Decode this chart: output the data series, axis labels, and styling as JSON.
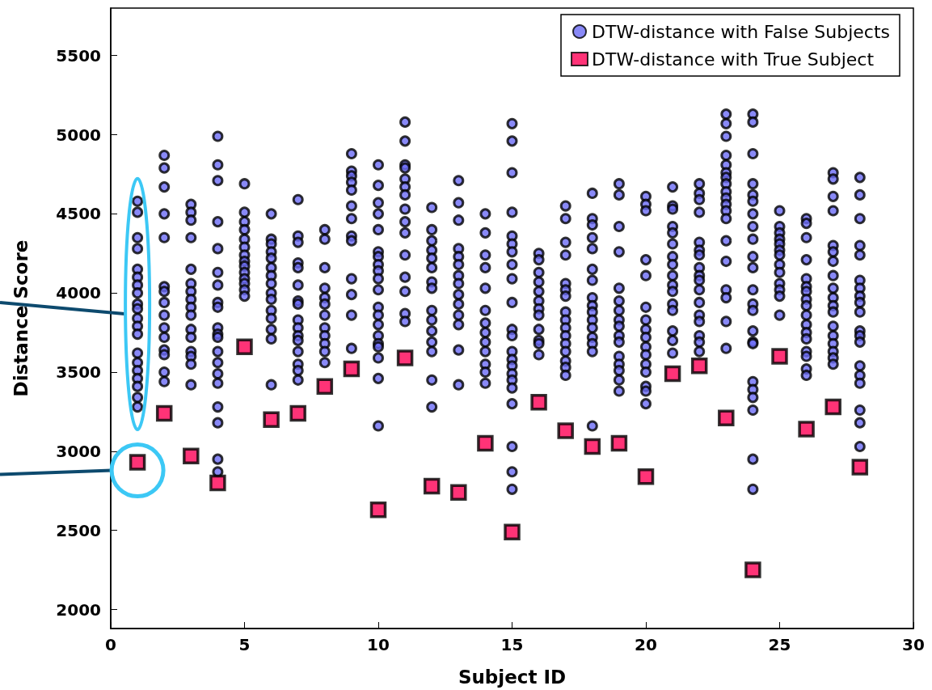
{
  "chart_data": {
    "type": "scatter",
    "xlabel": "Subject ID",
    "ylabel": "Distance Score",
    "xlim": [
      0,
      30
    ],
    "xticks": [
      0,
      5,
      10,
      15,
      20,
      25,
      30
    ],
    "ylim": [
      1880,
      5800
    ],
    "yticks": [
      2000,
      2500,
      3000,
      3500,
      4000,
      4500,
      5000,
      5500
    ],
    "grid": false,
    "legend": "top right",
    "series": [
      {
        "name": "DTW-distance with False Subjects",
        "color": "#6b6bf5",
        "marker": "circle",
        "x": [
          1,
          1,
          1,
          1,
          1,
          1,
          1,
          1,
          1,
          1,
          1,
          1,
          1,
          1,
          1,
          1,
          1,
          1,
          1,
          1,
          2,
          2,
          2,
          2,
          2,
          2,
          2,
          2,
          2,
          2,
          2,
          2,
          2,
          2,
          2,
          3,
          3,
          3,
          3,
          3,
          3,
          3,
          3,
          3,
          3,
          3,
          3,
          3,
          3,
          3,
          3,
          4,
          4,
          4,
          4,
          4,
          4,
          4,
          4,
          4,
          4,
          4,
          4,
          4,
          4,
          4,
          4,
          4,
          4,
          4,
          4,
          5,
          5,
          5,
          5,
          5,
          5,
          5,
          5,
          5,
          5,
          5,
          5,
          5,
          5,
          6,
          6,
          6,
          6,
          6,
          6,
          6,
          6,
          6,
          6,
          6,
          6,
          6,
          6,
          6,
          7,
          7,
          7,
          7,
          7,
          7,
          7,
          7,
          7,
          7,
          7,
          7,
          7,
          7,
          7,
          7,
          8,
          8,
          8,
          8,
          8,
          8,
          8,
          8,
          8,
          8,
          8,
          8,
          9,
          9,
          9,
          9,
          9,
          9,
          9,
          9,
          9,
          9,
          9,
          9,
          9,
          10,
          10,
          10,
          10,
          10,
          10,
          10,
          10,
          10,
          10,
          10,
          10,
          10,
          10,
          10,
          10,
          10,
          10,
          10,
          10,
          11,
          11,
          11,
          11,
          11,
          11,
          11,
          11,
          11,
          11,
          11,
          11,
          11,
          11,
          11,
          12,
          12,
          12,
          12,
          12,
          12,
          12,
          12,
          12,
          12,
          12,
          12,
          12,
          12,
          12,
          13,
          13,
          13,
          13,
          13,
          13,
          13,
          13,
          13,
          13,
          13,
          13,
          13,
          13,
          14,
          14,
          14,
          14,
          14,
          14,
          14,
          14,
          14,
          14,
          14,
          14,
          14,
          15,
          15,
          15,
          15,
          15,
          15,
          15,
          15,
          15,
          15,
          15,
          15,
          15,
          15,
          15,
          15,
          15,
          15,
          15,
          15,
          15,
          15,
          16,
          16,
          16,
          16,
          16,
          16,
          16,
          16,
          16,
          16,
          16,
          16,
          17,
          17,
          17,
          17,
          17,
          17,
          17,
          17,
          17,
          17,
          17,
          17,
          17,
          17,
          17,
          17,
          18,
          18,
          18,
          18,
          18,
          18,
          18,
          18,
          18,
          18,
          18,
          18,
          18,
          18,
          18,
          18,
          19,
          19,
          19,
          19,
          19,
          19,
          19,
          19,
          19,
          19,
          19,
          19,
          19,
          19,
          19,
          19,
          20,
          20,
          20,
          20,
          20,
          20,
          20,
          20,
          20,
          20,
          20,
          20,
          20,
          20,
          20,
          20,
          21,
          21,
          21,
          21,
          21,
          21,
          21,
          21,
          21,
          21,
          21,
          21,
          21,
          21,
          21,
          21,
          22,
          22,
          22,
          22,
          22,
          22,
          22,
          22,
          22,
          22,
          22,
          22,
          22,
          22,
          22,
          22,
          22,
          23,
          23,
          23,
          23,
          23,
          23,
          23,
          23,
          23,
          23,
          23,
          23,
          23,
          23,
          23,
          23,
          23,
          23,
          23,
          24,
          24,
          24,
          24,
          24,
          24,
          24,
          24,
          24,
          24,
          24,
          24,
          24,
          24,
          24,
          24,
          24,
          24,
          24,
          24,
          24,
          24,
          24,
          25,
          25,
          25,
          25,
          25,
          25,
          25,
          25,
          25,
          25,
          25,
          25,
          25,
          26,
          26,
          26,
          26,
          26,
          26,
          26,
          26,
          26,
          26,
          26,
          26,
          26,
          26,
          26,
          26,
          26,
          27,
          27,
          27,
          27,
          27,
          27,
          27,
          27,
          27,
          27,
          27,
          27,
          27,
          27,
          27,
          27,
          27,
          27,
          28,
          28,
          28,
          28,
          28,
          28,
          28,
          28,
          28,
          28,
          28,
          28,
          28,
          28,
          28,
          28,
          28,
          28,
          28
        ],
        "values": [
          4580,
          4510,
          4350,
          4280,
          4150,
          4100,
          4050,
          4000,
          3930,
          3900,
          3840,
          3790,
          3740,
          3620,
          3560,
          3510,
          3460,
          3410,
          3340,
          3280,
          4870,
          4790,
          4670,
          4500,
          4350,
          4040,
          4010,
          3940,
          3860,
          3780,
          3720,
          3640,
          3610,
          3500,
          3440,
          4560,
          4510,
          4460,
          4350,
          4150,
          4060,
          4010,
          3960,
          3910,
          3860,
          3770,
          3720,
          3630,
          3600,
          3550,
          3420,
          4990,
          4810,
          4710,
          4450,
          4280,
          4130,
          4050,
          3940,
          3910,
          3780,
          3740,
          3720,
          3630,
          3560,
          3490,
          3430,
          3280,
          3180,
          2950,
          2870,
          4690,
          4510,
          4450,
          4400,
          4340,
          4290,
          4240,
          4200,
          4170,
          4130,
          4090,
          4060,
          4020,
          3980,
          4500,
          4340,
          4310,
          4260,
          4220,
          4160,
          4110,
          4060,
          4000,
          3960,
          3890,
          3840,
          3770,
          3710,
          3420,
          4590,
          4360,
          4320,
          4190,
          4160,
          4050,
          3950,
          3930,
          3830,
          3780,
          3730,
          3700,
          3630,
          3550,
          3510,
          3450,
          4400,
          4340,
          4160,
          4030,
          3970,
          3930,
          3860,
          3780,
          3730,
          3680,
          3630,
          3560,
          4880,
          4770,
          4740,
          4700,
          4650,
          4550,
          4470,
          4360,
          4330,
          4090,
          3990,
          3860,
          3650,
          4810,
          4680,
          4570,
          4500,
          4400,
          4260,
          4230,
          4180,
          4140,
          4090,
          4020,
          3910,
          3860,
          3800,
          3730,
          3680,
          3660,
          3590,
          3460,
          3160,
          5080,
          4960,
          4810,
          4790,
          4720,
          4670,
          4620,
          4530,
          4450,
          4380,
          4240,
          4100,
          4010,
          3870,
          3820,
          4540,
          4400,
          4330,
          4270,
          4220,
          4160,
          4070,
          4030,
          3890,
          3830,
          3760,
          3690,
          3630,
          3450,
          3280,
          4710,
          4570,
          4460,
          4280,
          4230,
          4180,
          4110,
          4060,
          3990,
          3930,
          3860,
          3800,
          3640,
          3420,
          4500,
          4380,
          4240,
          4160,
          4030,
          3890,
          3810,
          3750,
          3690,
          3630,
          3550,
          3500,
          3430,
          5070,
          4960,
          4760,
          4510,
          4360,
          4310,
          4260,
          4180,
          4090,
          3940,
          3770,
          3730,
          3630,
          3580,
          3540,
          3490,
          3450,
          3400,
          3300,
          3030,
          2870,
          2760,
          4250,
          4210,
          4130,
          4070,
          4010,
          3950,
          3900,
          3860,
          3770,
          3700,
          3680,
          3610,
          4550,
          4470,
          4320,
          4240,
          4060,
          4020,
          3980,
          3880,
          3830,
          3780,
          3730,
          3680,
          3630,
          3570,
          3530,
          3480,
          4630,
          4470,
          4430,
          4350,
          4280,
          4150,
          4080,
          3970,
          3920,
          3880,
          3830,
          3780,
          3720,
          3680,
          3630,
          3160,
          4690,
          4620,
          4420,
          4260,
          4030,
          3950,
          3890,
          3830,
          3790,
          3730,
          3690,
          3600,
          3550,
          3510,
          3450,
          3380,
          4610,
          4560,
          4520,
          4210,
          4110,
          3910,
          3830,
          3770,
          3720,
          3660,
          3610,
          3550,
          3500,
          3410,
          3380,
          3300,
          4670,
          4550,
          4530,
          4420,
          4380,
          4310,
          4230,
          4180,
          4110,
          4050,
          4010,
          3930,
          3890,
          3760,
          3700,
          3620,
          4690,
          4630,
          4590,
          4510,
          4320,
          4270,
          4240,
          4160,
          4110,
          4080,
          4020,
          3940,
          3860,
          3820,
          3730,
          3690,
          3630,
          5130,
          5070,
          4990,
          4870,
          4810,
          4760,
          4730,
          4690,
          4640,
          4600,
          4560,
          4520,
          4470,
          4330,
          4200,
          4020,
          3970,
          3820,
          3650,
          5130,
          5080,
          4880,
          4690,
          4620,
          4580,
          4500,
          4420,
          4340,
          4230,
          4160,
          4020,
          3930,
          3890,
          3760,
          3690,
          3680,
          3440,
          3390,
          3340,
          3260,
          2950,
          2760,
          4520,
          4420,
          4380,
          4340,
          4310,
          4270,
          4240,
          4180,
          4130,
          4060,
          4020,
          3980,
          3860,
          4470,
          4440,
          4350,
          4210,
          4090,
          4040,
          4010,
          3960,
          3920,
          3860,
          3800,
          3750,
          3710,
          3630,
          3600,
          3520,
          3480,
          4760,
          4720,
          4610,
          4520,
          4300,
          4260,
          4200,
          4110,
          4030,
          3970,
          3920,
          3880,
          3790,
          3730,
          3680,
          3630,
          3590,
          3550,
          4730,
          4620,
          4470,
          4300,
          4240,
          4080,
          4030,
          3980,
          3940,
          3880,
          3760,
          3730,
          3690,
          3540,
          3480,
          3430,
          3260,
          3180,
          3030
        ]
      },
      {
        "name": "DTW-distance with True Subject",
        "color": "#ff0055",
        "marker": "square",
        "x": [
          1,
          2,
          3,
          4,
          5,
          6,
          7,
          8,
          9,
          10,
          11,
          12,
          13,
          14,
          15,
          16,
          17,
          18,
          19,
          20,
          21,
          22,
          23,
          24,
          25,
          26,
          27,
          28
        ],
        "values": [
          2930,
          3240,
          2970,
          2800,
          3660,
          3200,
          3240,
          3410,
          3520,
          2630,
          3590,
          2780,
          2740,
          3050,
          2490,
          3310,
          3130,
          3030,
          3050,
          2840,
          3490,
          3540,
          3210,
          2250,
          3600,
          3140,
          3280,
          2900
        ]
      }
    ]
  }
}
